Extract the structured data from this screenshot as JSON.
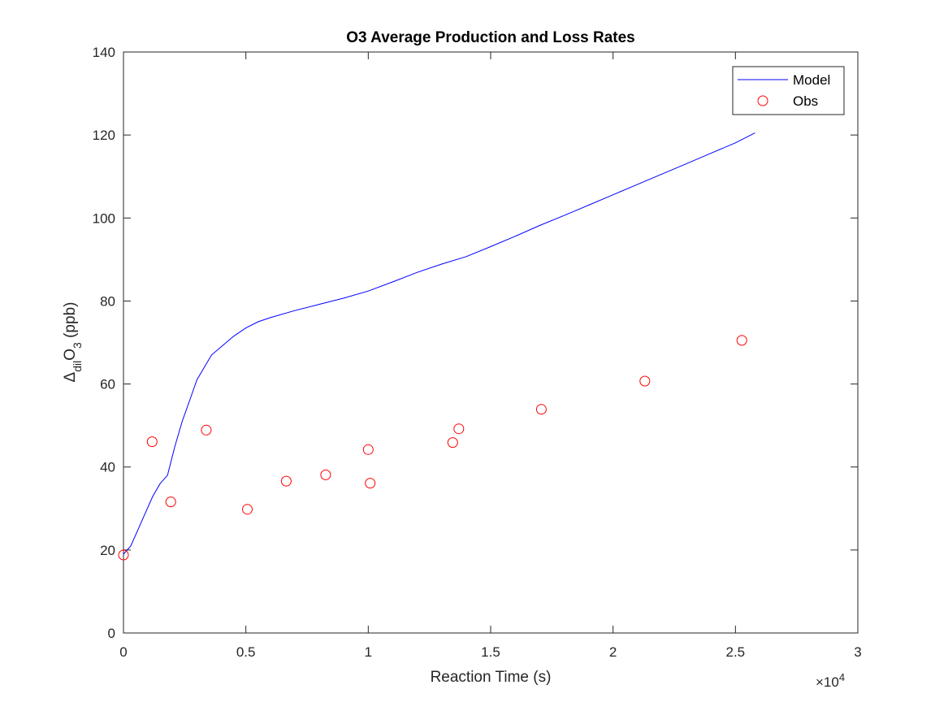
{
  "chart_data": {
    "type": "line",
    "title": "O3 Average Production and Loss Rates",
    "xlabel": "Reaction Time (s)",
    "ylabel": {
      "main": "Δ",
      "sub1": "dil",
      "mid": "O",
      "sub2": "3",
      "tail": " (ppb)"
    },
    "x_exponent": {
      "base": "×10",
      "power": "4"
    },
    "xlim": [
      0,
      30000
    ],
    "ylim": [
      0,
      140
    ],
    "xticks": [
      0,
      5000,
      10000,
      15000,
      20000,
      25000,
      30000
    ],
    "xtick_labels": [
      "0",
      "0.5",
      "1",
      "1.5",
      "2",
      "2.5",
      "3"
    ],
    "yticks": [
      0,
      20,
      40,
      60,
      80,
      100,
      120,
      140
    ],
    "ytick_labels": [
      "0",
      "20",
      "40",
      "60",
      "80",
      "100",
      "120",
      "140"
    ],
    "grid": false,
    "legend_position": "top-right",
    "series": [
      {
        "name": "Model",
        "kind": "line",
        "color": "#0000ff",
        "x": [
          0,
          300,
          600,
          900,
          1200,
          1500,
          1800,
          2100,
          2400,
          2700,
          3000,
          3300,
          3600,
          4000,
          4500,
          5000,
          5500,
          6000,
          7000,
          8000,
          9000,
          10000,
          11000,
          12000,
          13000,
          14000,
          15000,
          16000,
          17000,
          18000,
          19000,
          20000,
          21000,
          22000,
          23000,
          24000,
          25000,
          25800
        ],
        "y": [
          19,
          21,
          25,
          29,
          33,
          36,
          38,
          45,
          51,
          56,
          61,
          64,
          67,
          69,
          71.5,
          73.5,
          75,
          76,
          77.7,
          79.2,
          80.7,
          82.4,
          84.6,
          86.9,
          88.9,
          90.7,
          93.1,
          95.6,
          98.2,
          100.6,
          103.1,
          105.6,
          108.1,
          110.6,
          113.1,
          115.6,
          118.1,
          120.5
        ]
      },
      {
        "name": "Obs",
        "kind": "scatter",
        "color": "#ff0000",
        "x": [
          0,
          1170,
          1930,
          3380,
          5060,
          6650,
          8260,
          10000,
          10080,
          13450,
          13700,
          17070,
          21300,
          25260
        ],
        "y": [
          18.8,
          46.1,
          31.6,
          48.9,
          29.8,
          36.6,
          38.1,
          44.2,
          36.1,
          45.9,
          49.2,
          53.9,
          60.7,
          70.5
        ]
      }
    ]
  }
}
